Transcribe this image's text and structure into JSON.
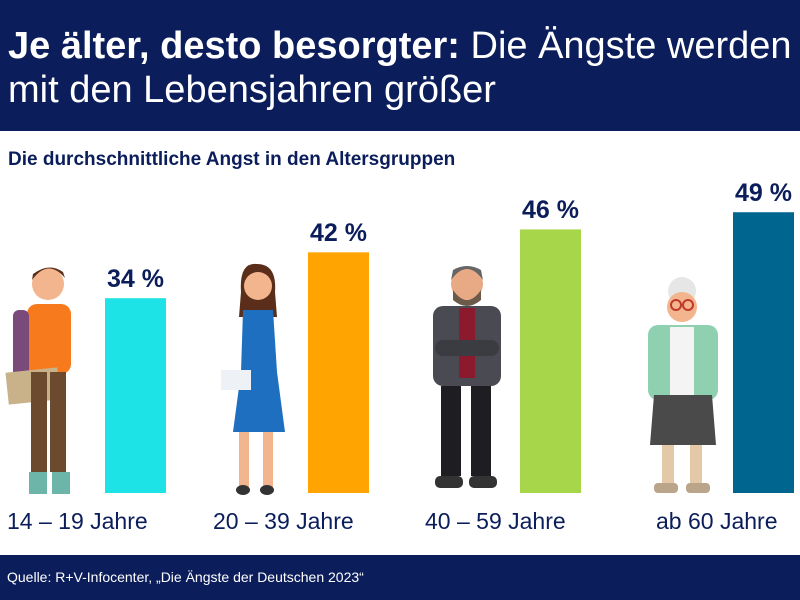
{
  "header": {
    "title_bold": "Je älter, desto besorgter:",
    "title_rest": " Die Ängste werden mit den Lebensjahren größer"
  },
  "chart_data": {
    "type": "bar",
    "title": "Die durchschnittliche Angst in den Altersgruppen",
    "categories": [
      "14 – 19 Jahre",
      "20 – 39 Jahre",
      "40 – 59 Jahre",
      "ab 60 Jahre"
    ],
    "values": [
      34,
      42,
      46,
      49
    ],
    "value_labels": [
      "34 %",
      "42 %",
      "46 %",
      "49 %"
    ],
    "colors": [
      "#1ee3e6",
      "#ffa400",
      "#a8d64b",
      "#006690"
    ],
    "unit": "%"
  },
  "footer": {
    "source": "Quelle: R+V-Infocenter, „Die Ängste der Deutschen 2023“"
  }
}
